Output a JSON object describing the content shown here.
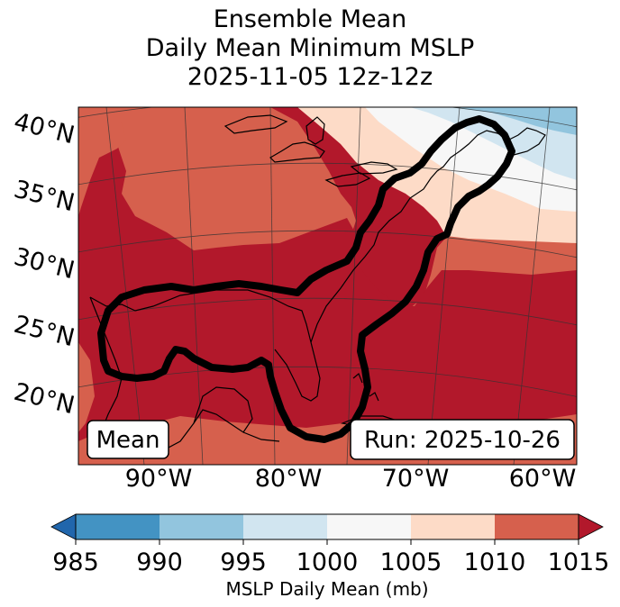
{
  "title": {
    "line1": "Ensemble Mean",
    "line2": "Daily Mean Minimum MSLP",
    "line3": "2025-11-05 12z-12z"
  },
  "map": {
    "lat_labels": [
      "40°N",
      "35°N",
      "30°N",
      "25°N",
      "20°N"
    ],
    "lon_labels": [
      "90°W",
      "80°W",
      "70°W",
      "60°W"
    ],
    "mean_box_label": "Mean",
    "run_box_label": "Run: 2025-10-26",
    "region_colors": {
      "1015+": "#b2182b",
      "1010-1015": "#d6604d",
      "1005-1010": "#fddbc7",
      "1000-1005": "#f7f7f7",
      "995-1000": "#d1e5f0",
      "990-995": "#92c5de"
    },
    "contour_color": "#000000"
  },
  "colorbar": {
    "tick_labels": [
      "985",
      "990",
      "995",
      "1000",
      "1005",
      "1010",
      "1015"
    ],
    "colors": [
      "#2166ac",
      "#4393c3",
      "#92c5de",
      "#d1e5f0",
      "#f7f7f7",
      "#fddbc7",
      "#d6604d",
      "#b2182b"
    ],
    "label": "MSLP Daily Mean (mb)"
  }
}
